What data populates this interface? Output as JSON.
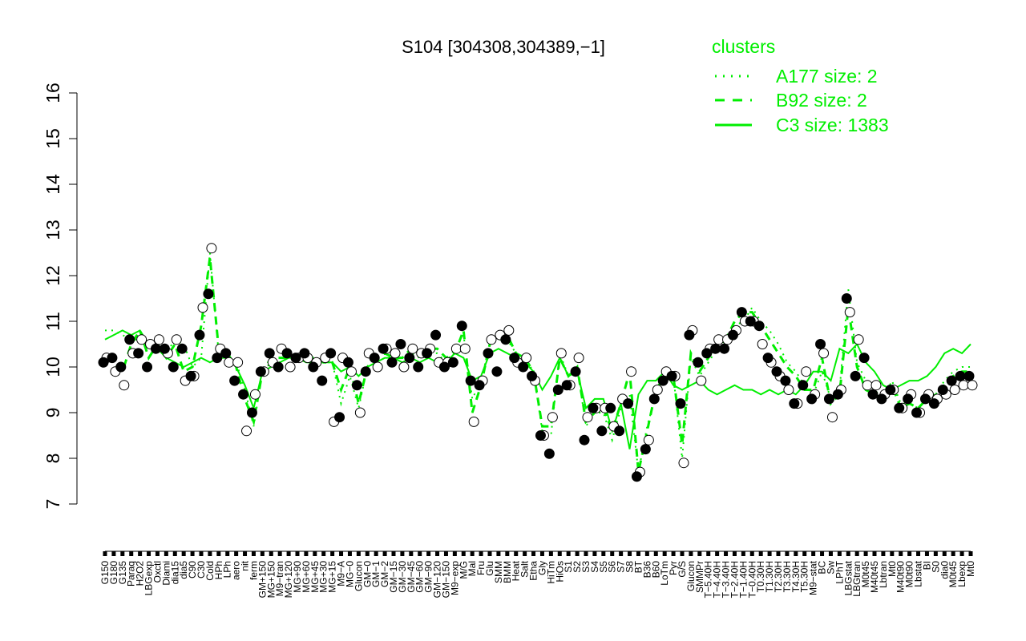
{
  "colors": {
    "accent": "#00ee00",
    "axis": "#000000",
    "point_filled": "#000000",
    "point_open": "#ffffff"
  },
  "chart_data": {
    "type": "line",
    "title": "S104 [304308,304389,−1]",
    "xlabel": "",
    "ylabel": "",
    "ylim": [
      7,
      16
    ],
    "yticks": [
      7,
      8,
      9,
      10,
      11,
      12,
      13,
      14,
      15,
      16
    ],
    "xtick_labels": [
      "G150",
      "G180",
      "G135",
      "Paraq",
      "H2O2",
      "LBGexp",
      "Oxctl",
      "Diami",
      "dia15",
      "dia5",
      "C90",
      "C30",
      "Cold",
      "HPh",
      "LPh",
      "aero",
      "nit",
      "ferm",
      "GM+150",
      "MG+150",
      "M9−tran",
      "MG+120",
      "MG+90",
      "MG+60",
      "MG+45",
      "MG+30",
      "MG+15",
      "M9−A",
      "MG−0",
      "Glucon",
      "GM−0",
      "GM−1",
      "GM−2",
      "GM−15",
      "GM−30",
      "GM−45",
      "GM−60",
      "GM−90",
      "GM−120",
      "GM−150",
      "M9−exp",
      "M/G",
      "Mal",
      "Fru",
      "Glu",
      "SMM",
      "BMM",
      "Heat",
      "Salt",
      "Etha",
      "Gly",
      "HiTm",
      "HiOs",
      "S1",
      "S2",
      "S3",
      "S4",
      "S5",
      "S6",
      "S7",
      "S8",
      "BT",
      "B36",
      "B60",
      "LoTm",
      "Pyr",
      "G/S",
      "Glucon",
      "SMMPr",
      "T−5.40H",
      "T−4.40H",
      "T−3.40H",
      "T−2.40H",
      "T−1.40H",
      "T−0.40H",
      "T0.30H",
      "T1.30H",
      "T2.30H",
      "T3.30H",
      "T4.30H",
      "T5.30H",
      "M9−stat",
      "BC",
      "Sw",
      "LPhT",
      "LBGstat",
      "LBGtran",
      "M0t45",
      "M40t45",
      "Lbtran",
      "Mt0",
      "M40t90",
      "M0t90",
      "Lbstat",
      "BI",
      "S0",
      "dia0",
      "M0t45",
      "Lbexp",
      "Mt0"
    ],
    "series": [
      {
        "name": "A177 size: 2",
        "style": "dotted",
        "values": [
          10.8,
          10.8,
          10.7,
          10.6,
          10.6,
          10.5,
          10.5,
          10.3,
          10.6,
          10.5,
          10.0,
          10.2,
          12.5,
          10.3,
          10.2,
          10.1,
          9.5,
          8.7,
          9.9,
          10.1,
          10.1,
          10.2,
          10.2,
          10.1,
          10.1,
          10.1,
          10.1,
          9.2,
          9.8,
          9.1,
          10.0,
          10.1,
          10.2,
          10.2,
          10.2,
          10.3,
          10.2,
          10.3,
          10.3,
          10.1,
          10.4,
          10.7,
          9.3,
          9.7,
          10.5,
          10.6,
          10.6,
          10.3,
          10.2,
          9.9,
          8.6,
          8.5,
          10.3,
          9.8,
          10.0,
          8.7,
          9.0,
          9.0,
          8.4,
          9.1,
          9.4,
          7.7,
          8.7,
          9.4,
          9.9,
          9.8,
          8.0,
          10.2,
          9.8,
          10.1,
          10.4,
          10.6,
          10.9,
          11.0,
          11.3,
          11.0,
          10.8,
          10.5,
          10.1,
          9.9,
          9.6,
          9.4,
          9.9,
          9.3,
          9.5,
          11.7,
          10.1,
          9.7,
          9.5,
          9.3,
          9.7,
          9.2,
          9.2,
          9.1,
          9.3,
          9.4,
          9.7,
          9.9,
          10.0,
          10.0
        ]
      },
      {
        "name": "B92 size: 2",
        "style": "dashed",
        "values": [
          10.2,
          10.1,
          9.9,
          10.5,
          10.8,
          10.2,
          10.5,
          10.2,
          10.5,
          9.9,
          10.0,
          10.9,
          12.4,
          10.4,
          10.3,
          10.0,
          9.3,
          8.8,
          9.9,
          10.2,
          10.2,
          10.2,
          10.2,
          10.2,
          10.2,
          10.1,
          10.1,
          9.5,
          10.0,
          9.2,
          10.0,
          10.2,
          10.3,
          10.2,
          10.2,
          10.4,
          10.3,
          10.4,
          10.4,
          10.2,
          10.3,
          10.8,
          9.0,
          9.6,
          10.5,
          10.6,
          10.7,
          10.3,
          10.2,
          9.9,
          8.7,
          8.7,
          10.2,
          9.8,
          10.0,
          8.8,
          9.0,
          9.1,
          8.6,
          9.2,
          9.9,
          7.7,
          8.6,
          9.5,
          9.8,
          9.8,
          8.3,
          10.3,
          9.9,
          10.2,
          10.5,
          10.6,
          11.0,
          11.2,
          11.2,
          10.9,
          10.6,
          10.3,
          10.0,
          9.8,
          9.5,
          9.5,
          10.2,
          9.2,
          9.4,
          11.3,
          10.0,
          9.5,
          9.4,
          9.3,
          9.6,
          9.1,
          9.2,
          9.1,
          9.3,
          9.4,
          9.6,
          9.8,
          9.9,
          9.9
        ]
      },
      {
        "name": "C3 size: 1383",
        "style": "solid",
        "values": [
          10.6,
          10.7,
          10.8,
          10.7,
          10.8,
          10.5,
          10.4,
          10.2,
          10.1,
          10.0,
          10.1,
          10.2,
          10.1,
          10.2,
          10.2,
          10.0,
          9.6,
          9.1,
          9.9,
          10.0,
          10.1,
          10.2,
          10.2,
          10.1,
          10.1,
          10.1,
          10.1,
          9.9,
          10.0,
          9.8,
          10.0,
          10.1,
          10.2,
          10.2,
          10.1,
          10.2,
          10.1,
          10.2,
          10.1,
          10.1,
          10.3,
          10.2,
          9.7,
          9.8,
          10.3,
          10.4,
          10.3,
          10.2,
          10.1,
          9.9,
          9.5,
          9.8,
          10.2,
          9.8,
          9.9,
          9.1,
          9.3,
          9.3,
          8.6,
          9.2,
          8.2,
          9.4,
          9.7,
          9.7,
          9.9,
          9.6,
          9.5,
          9.6,
          9.7,
          9.5,
          9.4,
          9.5,
          9.6,
          9.5,
          9.5,
          9.4,
          9.5,
          9.4,
          9.5,
          9.4,
          9.6,
          9.9,
          9.9,
          9.7,
          10.4,
          10.3,
          10.5,
          10.1,
          9.9,
          9.6,
          9.5,
          9.6,
          9.7,
          9.7,
          9.8,
          10.0,
          10.3,
          10.4,
          10.3,
          10.5
        ]
      }
    ],
    "points_filled": [
      10.1,
      10.2,
      10.0,
      10.6,
      10.3,
      10.0,
      10.4,
      10.4,
      10.0,
      10.4,
      9.8,
      10.7,
      11.6,
      10.2,
      10.3,
      9.7,
      9.4,
      9.0,
      9.9,
      10.3,
      10.0,
      10.3,
      10.2,
      10.3,
      10.0,
      9.7,
      10.3,
      8.9,
      10.1,
      9.6,
      9.9,
      10.2,
      10.4,
      10.1,
      10.5,
      10.2,
      10.0,
      10.3,
      10.7,
      10.0,
      10.1,
      10.9,
      9.7,
      9.6,
      10.3,
      9.9,
      10.6,
      10.2,
      10.0,
      9.8,
      8.5,
      8.1,
      9.5,
      9.6,
      9.9,
      8.4,
      9.1,
      8.6,
      9.1,
      8.6,
      9.2,
      7.6,
      8.2,
      9.3,
      9.7,
      9.8,
      9.2,
      10.7,
      10.1,
      10.3,
      10.4,
      10.4,
      10.7,
      11.2,
      11.0,
      10.9,
      10.2,
      9.9,
      9.7,
      9.2,
      9.6,
      9.3,
      10.5,
      9.3,
      9.4,
      11.5,
      9.8,
      10.2,
      9.4,
      9.3,
      9.5,
      9.1,
      9.3,
      9.0,
      9.3,
      9.2,
      9.5,
      9.7,
      9.8,
      9.8
    ],
    "points_open": [
      10.2,
      9.9,
      9.6,
      10.3,
      10.6,
      10.5,
      10.6,
      10.3,
      10.6,
      9.7,
      9.8,
      11.3,
      12.6,
      10.4,
      10.1,
      10.1,
      8.6,
      9.4,
      9.9,
      10.1,
      10.4,
      10.0,
      10.2,
      10.2,
      10.1,
      10.2,
      8.8,
      10.2,
      9.9,
      9.0,
      10.3,
      10.0,
      10.4,
      10.3,
      10.0,
      10.4,
      10.3,
      10.4,
      10.1,
      10.1,
      10.4,
      10.4,
      8.8,
      9.7,
      10.6,
      10.7,
      10.8,
      10.1,
      10.2,
      9.7,
      8.5,
      8.9,
      10.3,
      9.6,
      10.2,
      8.9,
      9.1,
      9.1,
      8.7,
      9.3,
      9.9,
      7.7,
      8.4,
      9.5,
      9.9,
      9.8,
      7.9,
      10.8,
      9.7,
      10.4,
      10.6,
      10.6,
      10.8,
      11.0,
      11.0,
      10.5,
      10.1,
      9.8,
      9.5,
      9.2,
      9.9,
      9.4,
      10.3,
      8.9,
      9.5,
      11.2,
      10.6,
      9.6,
      9.6,
      9.4,
      9.5,
      9.1,
      9.4,
      9.0,
      9.4,
      9.3,
      9.4,
      9.5,
      9.6,
      9.6
    ],
    "legend": {
      "title": "clusters",
      "placement": "top-right",
      "entries": [
        "A177 size: 2",
        "B92 size: 2",
        "C3 size: 1383"
      ]
    }
  }
}
